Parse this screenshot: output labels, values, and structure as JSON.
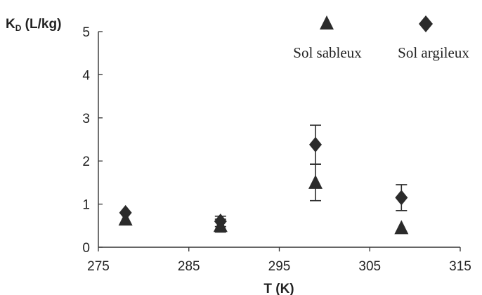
{
  "chart_data": {
    "type": "scatter",
    "ylabel": "K",
    "ylabel_sub": "D",
    "ylabel_unit": " (L/kg)",
    "xlabel": "T (K)",
    "xlim": [
      275,
      315
    ],
    "ylim": [
      0,
      5
    ],
    "xticks": [
      275,
      285,
      295,
      305,
      315
    ],
    "yticks": [
      0,
      1,
      2,
      3,
      4,
      5
    ],
    "grid": false,
    "legend_position": "top-right",
    "series": [
      {
        "name": "Sol sableux",
        "marker": "triangle",
        "color": "#2b2b2b",
        "points": [
          {
            "x": 278,
            "y": 0.65,
            "err": 0
          },
          {
            "x": 288.5,
            "y": 0.5,
            "err": 0.15
          },
          {
            "x": 299,
            "y": 1.5,
            "err": 0.42
          },
          {
            "x": 308.5,
            "y": 0.45,
            "err": 0
          }
        ]
      },
      {
        "name": "Sol argileux",
        "marker": "diamond",
        "color": "#2b2b2b",
        "points": [
          {
            "x": 278,
            "y": 0.8,
            "err": 0
          },
          {
            "x": 288.5,
            "y": 0.6,
            "err": 0.12
          },
          {
            "x": 299,
            "y": 2.38,
            "err": 0.45
          },
          {
            "x": 308.5,
            "y": 1.15,
            "err": 0.3
          }
        ]
      }
    ]
  }
}
